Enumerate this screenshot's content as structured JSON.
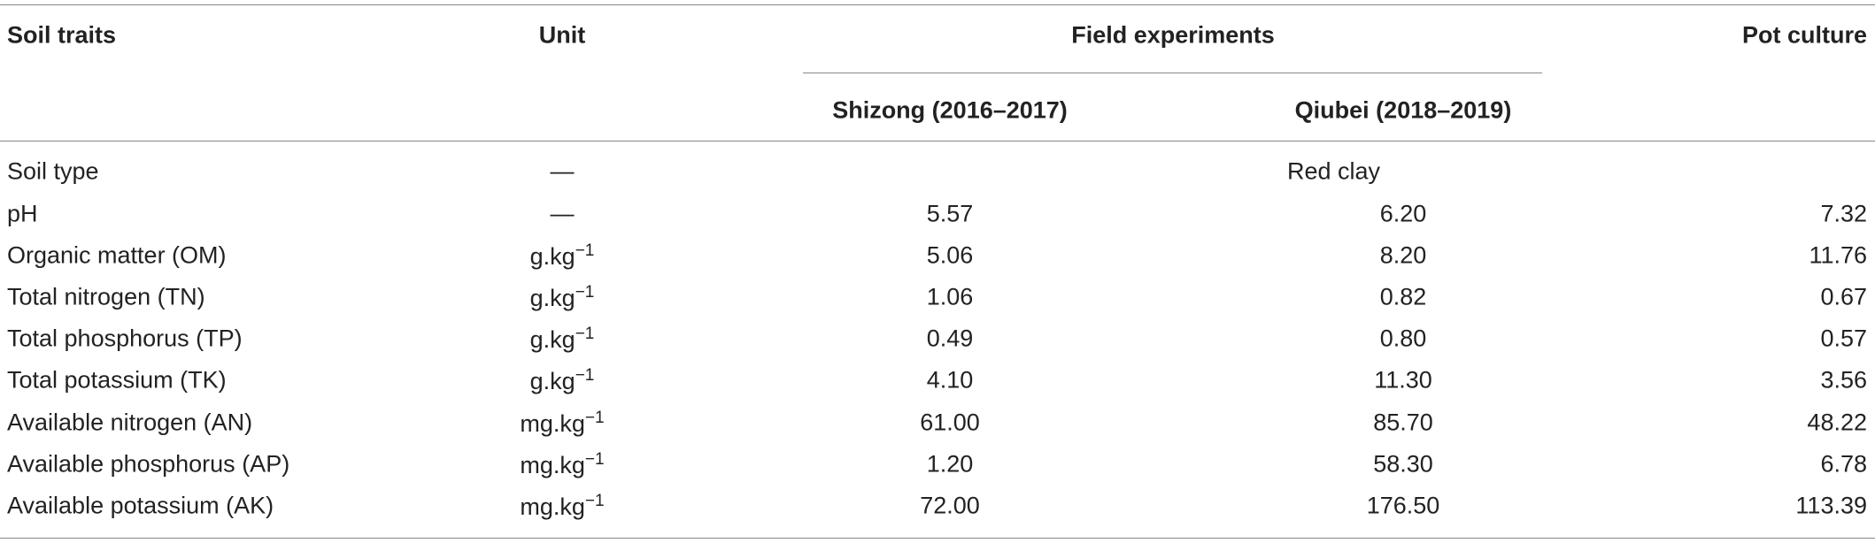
{
  "table": {
    "header": {
      "trait": "Soil traits",
      "unit": "Unit",
      "group": "Field experiments",
      "sub": [
        "Shizong (2016–2017)",
        "Qiubei (2018–2019)"
      ],
      "pot": "Pot culture"
    },
    "rows": [
      {
        "trait": "Soil type",
        "unit": "—",
        "span_value": "Red clay"
      },
      {
        "trait": "pH",
        "unit": "—",
        "values": [
          "5.57",
          "6.20",
          "7.32"
        ]
      },
      {
        "trait": "Organic matter (OM)",
        "unit": {
          "base": "g.kg",
          "sup": "−1"
        },
        "values": [
          "5.06",
          "8.20",
          "11.76"
        ]
      },
      {
        "trait": "Total nitrogen (TN)",
        "unit": {
          "base": "g.kg",
          "sup": "−1"
        },
        "values": [
          "1.06",
          "0.82",
          "0.67"
        ]
      },
      {
        "trait": "Total phosphorus (TP)",
        "unit": {
          "base": "g.kg",
          "sup": "−1"
        },
        "values": [
          "0.49",
          "0.80",
          "0.57"
        ]
      },
      {
        "trait": "Total potassium (TK)",
        "unit": {
          "base": "g.kg",
          "sup": "−1"
        },
        "values": [
          "4.10",
          "11.30",
          "3.56"
        ]
      },
      {
        "trait": "Available nitrogen (AN)",
        "unit": {
          "base": "mg.kg",
          "sup": "−1"
        },
        "values": [
          "61.00",
          "85.70",
          "48.22"
        ]
      },
      {
        "trait": "Available phosphorus (AP)",
        "unit": {
          "base": "mg.kg",
          "sup": "−1"
        },
        "values": [
          "1.20",
          "58.30",
          "6.78"
        ]
      },
      {
        "trait": "Available potassium (AK)",
        "unit": {
          "base": "mg.kg",
          "sup": "−1"
        },
        "values": [
          "72.00",
          "176.50",
          "113.39"
        ]
      }
    ]
  }
}
